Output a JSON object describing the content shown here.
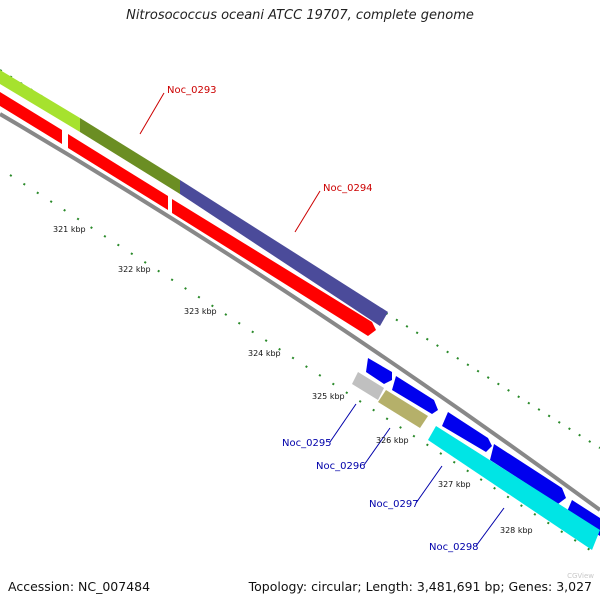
{
  "title": "Nitrosococcus oceani ATCC 19707, complete genome",
  "footer": {
    "accession": "Accession: NC_007484",
    "stats": "Topology: circular; Length: 3,481,691 bp; Genes: 3,027"
  },
  "watermark": "CGView",
  "ticks": [
    {
      "label": "321 kbp"
    },
    {
      "label": "322 kbp"
    },
    {
      "label": "323 kbp"
    },
    {
      "label": "324 kbp"
    },
    {
      "label": "325 kbp"
    },
    {
      "label": "326 kbp"
    },
    {
      "label": "327 kbp"
    },
    {
      "label": "328 kbp"
    }
  ],
  "genes": [
    {
      "name": "Noc_0293",
      "color": "#cc0000"
    },
    {
      "name": "Noc_0294",
      "color": "#cc0000"
    },
    {
      "name": "Noc_0295",
      "color": "#0000aa"
    },
    {
      "name": "Noc_0296",
      "color": "#0000aa"
    },
    {
      "name": "Noc_0297",
      "color": "#0000aa"
    },
    {
      "name": "Noc_0298",
      "color": "#0000aa"
    }
  ],
  "colors": {
    "forward_cds": "#0000ee",
    "reverse_cds": "#ff0000",
    "lime_feature": "#a6e22e",
    "olive_feature": "#6b8e23",
    "slate_feature": "#4b4b9a",
    "gray_feature": "#c0c0c0",
    "khaki_feature": "#b5b06a",
    "cyan_feature": "#00e5e5",
    "backbone": "#888888",
    "tick": "#2a8a2a"
  }
}
